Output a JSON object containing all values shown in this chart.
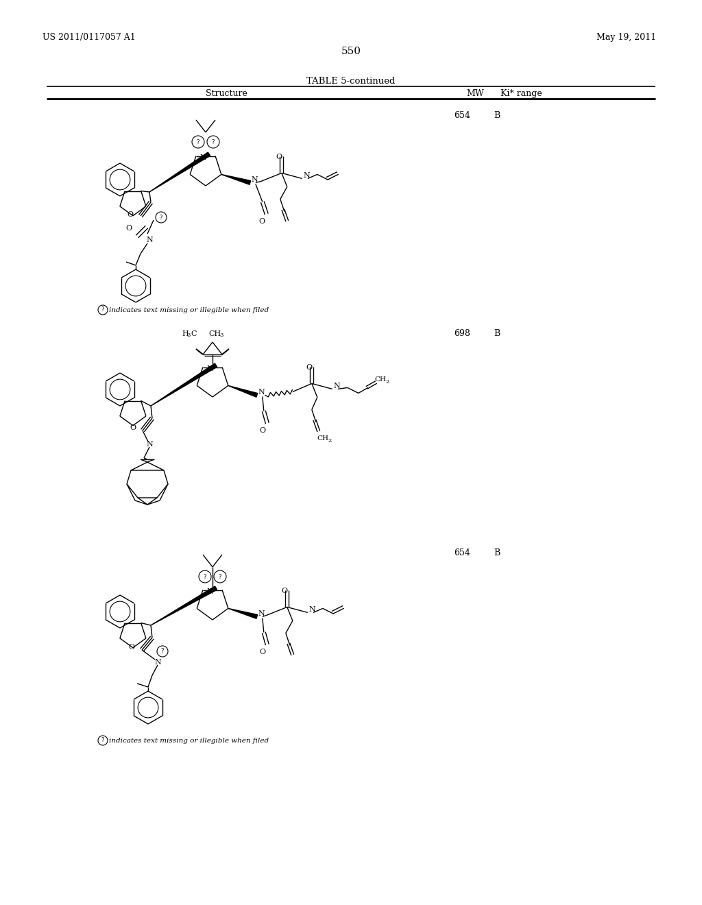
{
  "page_number": "550",
  "patent_number": "US 2011/0117057 A1",
  "patent_date": "May 19, 2011",
  "table_title": "TABLE 5-continued",
  "col_structure": "Structure",
  "col_mw": "MW",
  "col_ki": "Ki* range",
  "background_color": "#ffffff",
  "rows": [
    {
      "mw": "654",
      "ki": "B",
      "note": "indicates text missing or illegible when filed"
    },
    {
      "mw": "698",
      "ki": "B",
      "note": null
    },
    {
      "mw": "654",
      "ki": "B",
      "note": "indicates text missing or illegible when filed"
    }
  ]
}
